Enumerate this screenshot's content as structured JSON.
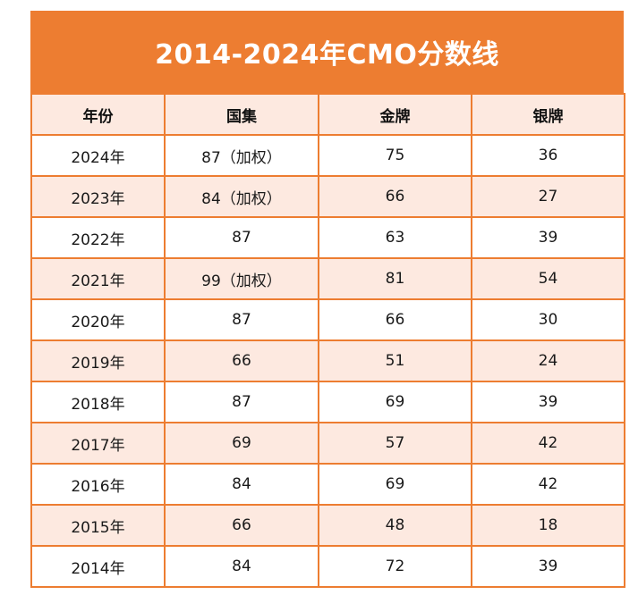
{
  "title": "2014-2024年CMO分数线",
  "columns": [
    "年份",
    "国集",
    "金牌",
    "银牌"
  ],
  "rows": [
    [
      "2024年",
      "87（加权）",
      "75",
      "36"
    ],
    [
      "2023年",
      "84（加权）",
      "66",
      "27"
    ],
    [
      "2022年",
      "87",
      "63",
      "39"
    ],
    [
      "2021年",
      "99（加权）",
      "81",
      "54"
    ],
    [
      "2020年",
      "87",
      "66",
      "30"
    ],
    [
      "2019年",
      "66",
      "51",
      "24"
    ],
    [
      "2018年",
      "87",
      "69",
      "39"
    ],
    [
      "2017年",
      "69",
      "57",
      "42"
    ],
    [
      "2016年",
      "84",
      "69",
      "42"
    ],
    [
      "2015年",
      "66",
      "48",
      "18"
    ],
    [
      "2014年",
      "84",
      "72",
      "39"
    ]
  ],
  "colors": {
    "accent": "#ed7d31",
    "row_tint": "#fde9e0",
    "title_text": "#ffffff"
  }
}
